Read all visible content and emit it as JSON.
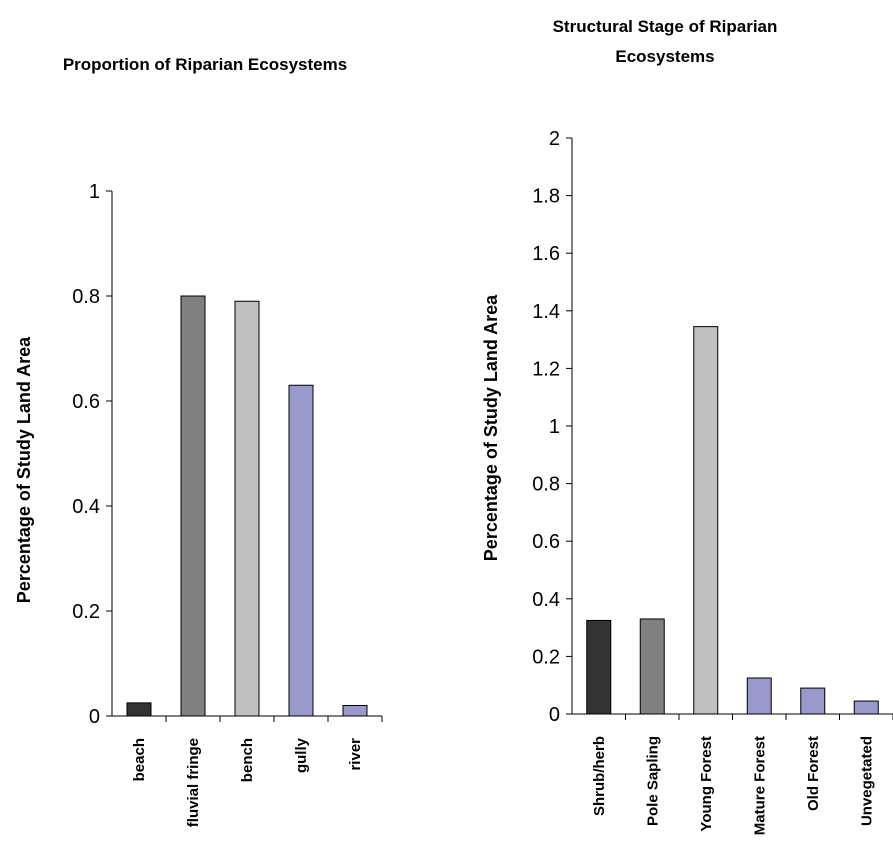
{
  "chart_data": [
    {
      "type": "bar",
      "title": "Proportion of Riparian Ecosystems",
      "xlabel": "",
      "ylabel": "Percentage of Study Land Area",
      "ylim": [
        0,
        1
      ],
      "yticks": [
        "0",
        "0.2",
        "0.4",
        "0.6",
        "0.8",
        "1"
      ],
      "categories": [
        "beach",
        "fluvial fringe",
        "bench",
        "gully",
        "river"
      ],
      "values": [
        0.025,
        0.8,
        0.79,
        0.63,
        0.02
      ],
      "colors": [
        "#333333",
        "#808080",
        "#c0c0c0",
        "#9999cc",
        "#9999cc"
      ],
      "grid": false
    },
    {
      "type": "bar",
      "title": "Structural Stage of Riparian Ecosystems",
      "xlabel": "",
      "ylabel": "Percentage of Study Land Area",
      "ylim": [
        0,
        2
      ],
      "yticks": [
        "0",
        "0.2",
        "0.4",
        "0.6",
        "0.8",
        "1",
        "1.2",
        "1.4",
        "1.6",
        "1.8",
        "2"
      ],
      "categories": [
        "Shrub/herb",
        "Pole Sapling",
        "Young Forest",
        "Mature Forest",
        "Old Forest",
        "Unvegetated"
      ],
      "values": [
        0.325,
        0.33,
        1.345,
        0.125,
        0.09,
        0.045
      ],
      "colors": [
        "#333333",
        "#808080",
        "#c0c0c0",
        "#9999cc",
        "#9999cc",
        "#9999cc"
      ],
      "grid": false
    }
  ]
}
